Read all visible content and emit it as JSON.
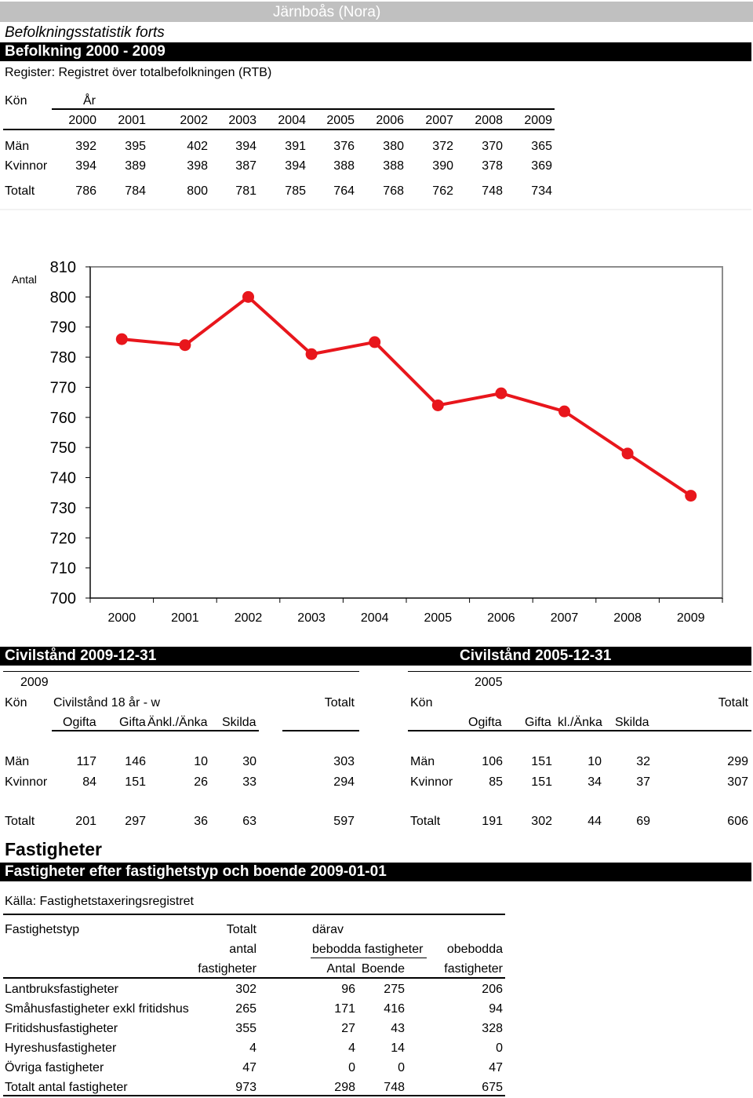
{
  "header": {
    "area_title": "Järnboås (Nora)",
    "report_title": "Befolkningsstatistik forts",
    "section_title": "Befolkning 2000 - 2009",
    "register": "Register: Registret över totalbefolkningen (RTB)"
  },
  "population_table": {
    "kon_label": "Kön",
    "ar_label": "År",
    "years": [
      "2000",
      "2001",
      "2002",
      "2003",
      "2004",
      "2005",
      "2006",
      "2007",
      "2008",
      "2009"
    ],
    "rows": [
      {
        "label": "Män",
        "values": [
          "392",
          "395",
          "402",
          "394",
          "391",
          "376",
          "380",
          "372",
          "370",
          "365"
        ]
      },
      {
        "label": "Kvinnor",
        "values": [
          "394",
          "389",
          "398",
          "387",
          "394",
          "388",
          "388",
          "390",
          "378",
          "369"
        ]
      },
      {
        "label": "Totalt",
        "values": [
          "786",
          "784",
          "800",
          "781",
          "785",
          "764",
          "768",
          "762",
          "748",
          "734"
        ]
      }
    ]
  },
  "chart_data": {
    "type": "line",
    "ylabel": "Antal",
    "x": [
      "2000",
      "2001",
      "2002",
      "2003",
      "2004",
      "2005",
      "2006",
      "2007",
      "2008",
      "2009"
    ],
    "series": [
      {
        "values": [
          786,
          784,
          800,
          781,
          785,
          764,
          768,
          762,
          748,
          734
        ]
      }
    ],
    "ylim": [
      700,
      810
    ],
    "yticks": [
      810,
      800,
      790,
      780,
      770,
      760,
      750,
      740,
      730,
      720,
      710,
      700
    ],
    "color": "#e8161c",
    "grid": false
  },
  "civilstand_2009": {
    "title": "Civilstånd 2009-12-31",
    "year": "2009",
    "kon_label": "Kön",
    "civ_label": "Civilstånd 18 år - w",
    "total_label": "Totalt",
    "columns": [
      "Ogifta",
      "Gifta",
      "Änkl./Änka",
      "Skilda"
    ],
    "rows": [
      {
        "label": "Män",
        "values": [
          "117",
          "146",
          "10",
          "30"
        ],
        "total": "303"
      },
      {
        "label": "Kvinnor",
        "values": [
          "84",
          "151",
          "26",
          "33"
        ],
        "total": "294"
      },
      {
        "label": "Totalt",
        "values": [
          "201",
          "297",
          "36",
          "63"
        ],
        "total": "597"
      }
    ]
  },
  "civilstand_2005": {
    "title": "Civilstånd 2005-12-31",
    "year": "2005",
    "kon_label": "Kön",
    "total_label": "Totalt",
    "columns": [
      "Ogifta",
      "Gifta",
      "kl./Änka",
      "Skilda"
    ],
    "rows": [
      {
        "label": "Män",
        "values": [
          "106",
          "151",
          "10",
          "32"
        ],
        "total": "299"
      },
      {
        "label": "Kvinnor",
        "values": [
          "85",
          "151",
          "34",
          "37"
        ],
        "total": "307"
      },
      {
        "label": "Totalt",
        "values": [
          "191",
          "302",
          "44",
          "69"
        ],
        "total": "606"
      }
    ]
  },
  "fastigheter": {
    "heading": "Fastigheter",
    "section_title": "Fastigheter efter fastighetstyp och boende 2009-01-01",
    "source": "Källa: Fastighetstaxeringsregistret",
    "col_type": "Fastighetstyp",
    "col_totalt": "Totalt",
    "col_antal": "antal",
    "col_fastigheter": "fastigheter",
    "col_darav": "därav",
    "col_bebodda": "bebodda fastigheter",
    "col_obebodda": "obebodda",
    "col_antal2": "Antal",
    "col_boende": "Boende",
    "col_fastigheter2": "fastigheter",
    "rows": [
      {
        "label": "Lantbruksfastigheter",
        "total": "302",
        "antal": "96",
        "boende": "275",
        "obebodda": "206"
      },
      {
        "label": "Småhusfastigheter exkl fritidshus",
        "total": "265",
        "antal": "171",
        "boende": "416",
        "obebodda": "94"
      },
      {
        "label": "Fritidshusfastigheter",
        "total": "355",
        "antal": "27",
        "boende": "43",
        "obebodda": "328"
      },
      {
        "label": "Hyreshusfastigheter",
        "total": "4",
        "antal": "4",
        "boende": "14",
        "obebodda": "0"
      },
      {
        "label": "Övriga fastigheter",
        "total": "47",
        "antal": "0",
        "boende": "0",
        "obebodda": "47"
      },
      {
        "label": "Totalt antal fastigheter",
        "total": "973",
        "antal": "298",
        "boende": "748",
        "obebodda": "675"
      }
    ]
  }
}
